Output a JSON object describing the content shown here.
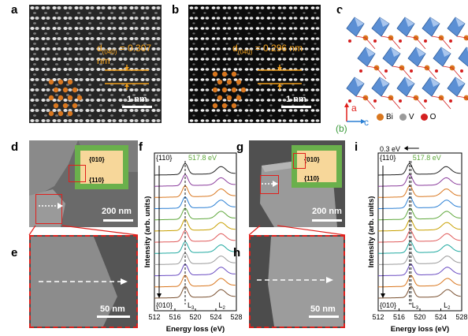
{
  "panels": {
    "a": {
      "label": "a",
      "d_spacing": "d(040) = 0.307 nm",
      "d_prefix": "d",
      "d_sub": "(040)",
      "d_value": " = 0.307 nm",
      "scale": "1 nm"
    },
    "b": {
      "label": "b",
      "d_prefix": "d",
      "d_sub": "(040)",
      "d_value": " = 0.296 nm",
      "scale": "1 nm"
    },
    "c": {
      "label": "c",
      "legend": [
        {
          "name": "Bi",
          "color": "#d9771f"
        },
        {
          "name": "V",
          "color": "#9a9a9a"
        },
        {
          "name": "O",
          "color": "#d42020"
        }
      ],
      "axes": {
        "a": "a",
        "c": "c",
        "b": "(b)"
      }
    },
    "d": {
      "label": "d",
      "facet_top": "{010}",
      "facet_side": "{110}",
      "scale": "200 nm"
    },
    "e": {
      "label": "e",
      "scale": "50 nm"
    },
    "f": {
      "label": "f",
      "top_label": "{110}",
      "bottom_label": "{010}",
      "peak_label": "517.8 eV",
      "L3": "L",
      "L3_sub": "3",
      "L2": "L",
      "L2_sub": "2"
    },
    "g": {
      "label": "g",
      "facet_top": "{010}",
      "facet_side": "{110}",
      "scale": "200 nm"
    },
    "h": {
      "label": "h",
      "scale": "50 nm"
    },
    "i": {
      "label": "i",
      "shift_label": "0.3 eV",
      "top_label": "{110}",
      "bottom_label": "{010}",
      "peak_label": "517.8 eV",
      "L3": "L",
      "L3_sub": "3",
      "L2": "L",
      "L2_sub": "2"
    }
  },
  "chart_data": [
    {
      "type": "line",
      "title": "",
      "xlabel": "Energy loss (eV)",
      "ylabel": "Intensity (arb. units)",
      "xlim": [
        512,
        528
      ],
      "xticks": [
        512,
        516,
        520,
        524,
        528
      ],
      "peaks_eV": {
        "L3": 518.0,
        "L2": 525.0
      },
      "n_spectra": 12,
      "series_colors": [
        "#222222",
        "#8a3b9c",
        "#d9771f",
        "#2a7fd4",
        "#5fa83c",
        "#c8a000",
        "#e05a5a",
        "#1fa9a0",
        "#9a9a9a",
        "#6a4cc2",
        "#d9771f",
        "#7a5030"
      ]
    },
    {
      "type": "line",
      "title": "",
      "xlabel": "Energy loss (eV)",
      "ylabel": "Intensity (arb. units)",
      "xlim": [
        512,
        528
      ],
      "xticks": [
        512,
        516,
        520,
        524,
        528
      ],
      "peaks_eV": {
        "L3": 518.0,
        "L2": 525.0
      },
      "shift_eV": 0.3,
      "n_spectra": 12,
      "series_colors": [
        "#222222",
        "#8a3b9c",
        "#d9771f",
        "#2a7fd4",
        "#5fa83c",
        "#c8a000",
        "#e05a5a",
        "#1fa9a0",
        "#9a9a9a",
        "#6a4cc2",
        "#d9771f",
        "#7a5030"
      ]
    }
  ],
  "colors": {
    "orange": "#f2a01c",
    "red_box": "#e0201c",
    "green": "#6ab04c",
    "peach": "#f7d79a"
  }
}
